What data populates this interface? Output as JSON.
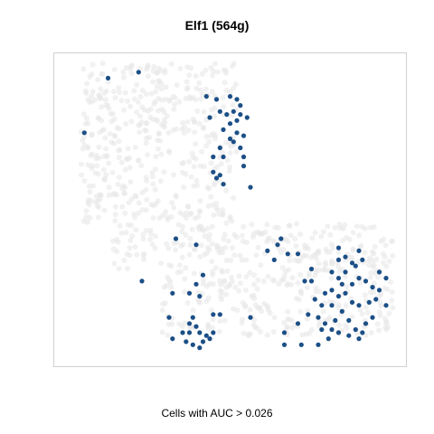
{
  "chart_data": {
    "type": "scatter",
    "title": "Elf1 (564g)",
    "caption": "Cells with AUC > 0.026",
    "xlabel": "",
    "ylabel": "",
    "axes_visible": false,
    "grid": false,
    "legend": "none",
    "colors": {
      "highlighted": "#1c4f86",
      "background": "#e8e8e8",
      "frame": "#d0d0d0"
    },
    "highlighted": [
      [
        0.14,
        0.93
      ],
      [
        0.23,
        0.95
      ],
      [
        0.43,
        0.87
      ],
      [
        0.46,
        0.86
      ],
      [
        0.5,
        0.87
      ],
      [
        0.52,
        0.86
      ],
      [
        0.53,
        0.84
      ],
      [
        0.47,
        0.82
      ],
      [
        0.49,
        0.81
      ],
      [
        0.51,
        0.82
      ],
      [
        0.53,
        0.81
      ],
      [
        0.55,
        0.8
      ],
      [
        0.44,
        0.8
      ],
      [
        0.52,
        0.79
      ],
      [
        0.5,
        0.78
      ],
      [
        0.48,
        0.76
      ],
      [
        0.52,
        0.75
      ],
      [
        0.54,
        0.74
      ],
      [
        0.5,
        0.73
      ],
      [
        0.51,
        0.72
      ],
      [
        0.47,
        0.7
      ],
      [
        0.53,
        0.7
      ],
      [
        0.48,
        0.67
      ],
      [
        0.54,
        0.64
      ],
      [
        0.07,
        0.75
      ],
      [
        0.45,
        0.62
      ],
      [
        0.47,
        0.61
      ],
      [
        0.46,
        0.6
      ],
      [
        0.45,
        0.67
      ],
      [
        0.54,
        0.67
      ],
      [
        0.56,
        0.57
      ],
      [
        0.48,
        0.58
      ],
      [
        0.34,
        0.4
      ],
      [
        0.4,
        0.38
      ],
      [
        0.24,
        0.26
      ],
      [
        0.42,
        0.28
      ],
      [
        0.4,
        0.25
      ],
      [
        0.38,
        0.22
      ],
      [
        0.41,
        0.21
      ],
      [
        0.33,
        0.22
      ],
      [
        0.32,
        0.14
      ],
      [
        0.39,
        0.14
      ],
      [
        0.38,
        0.12
      ],
      [
        0.4,
        0.11
      ],
      [
        0.45,
        0.15
      ],
      [
        0.45,
        0.09
      ],
      [
        0.41,
        0.09
      ],
      [
        0.43,
        0.08
      ],
      [
        0.38,
        0.09
      ],
      [
        0.36,
        0.09
      ],
      [
        0.42,
        0.06
      ],
      [
        0.39,
        0.05
      ],
      [
        0.41,
        0.04
      ],
      [
        0.37,
        0.06
      ],
      [
        0.33,
        0.07
      ],
      [
        0.44,
        0.07
      ],
      [
        0.47,
        0.15
      ],
      [
        0.56,
        0.14
      ],
      [
        0.64,
        0.38
      ],
      [
        0.65,
        0.4
      ],
      [
        0.61,
        0.36
      ],
      [
        0.67,
        0.35
      ],
      [
        0.63,
        0.33
      ],
      [
        0.7,
        0.35
      ],
      [
        0.74,
        0.3
      ],
      [
        0.72,
        0.26
      ],
      [
        0.75,
        0.2
      ],
      [
        0.77,
        0.18
      ],
      [
        0.73,
        0.15
      ],
      [
        0.7,
        0.12
      ],
      [
        0.66,
        0.09
      ],
      [
        0.71,
        0.05
      ],
      [
        0.76,
        0.05
      ],
      [
        0.66,
        0.05
      ],
      [
        0.82,
        0.37
      ],
      [
        0.84,
        0.34
      ],
      [
        0.86,
        0.32
      ],
      [
        0.88,
        0.36
      ],
      [
        0.8,
        0.29
      ],
      [
        0.82,
        0.27
      ],
      [
        0.84,
        0.29
      ],
      [
        0.86,
        0.25
      ],
      [
        0.88,
        0.27
      ],
      [
        0.9,
        0.26
      ],
      [
        0.92,
        0.24
      ],
      [
        0.94,
        0.29
      ],
      [
        0.96,
        0.27
      ],
      [
        0.8,
        0.23
      ],
      [
        0.82,
        0.21
      ],
      [
        0.84,
        0.22
      ],
      [
        0.86,
        0.19
      ],
      [
        0.88,
        0.18
      ],
      [
        0.91,
        0.19
      ],
      [
        0.93,
        0.2
      ],
      [
        0.96,
        0.18
      ],
      [
        0.78,
        0.22
      ],
      [
        0.8,
        0.18
      ],
      [
        0.83,
        0.16
      ],
      [
        0.81,
        0.13
      ],
      [
        0.85,
        0.13
      ],
      [
        0.87,
        0.1
      ],
      [
        0.9,
        0.12
      ],
      [
        0.92,
        0.14
      ],
      [
        0.78,
        0.12
      ],
      [
        0.77,
        0.1
      ],
      [
        0.8,
        0.1
      ],
      [
        0.82,
        0.09
      ],
      [
        0.85,
        0.08
      ],
      [
        0.88,
        0.07
      ],
      [
        0.89,
        0.09
      ],
      [
        0.76,
        0.14
      ],
      [
        0.79,
        0.07
      ],
      [
        0.89,
        0.33
      ],
      [
        0.82,
        0.33
      ],
      [
        0.74,
        0.26
      ],
      [
        0.94,
        0.23
      ],
      [
        0.87,
        0.31
      ],
      [
        0.83,
        0.25
      ]
    ]
  }
}
